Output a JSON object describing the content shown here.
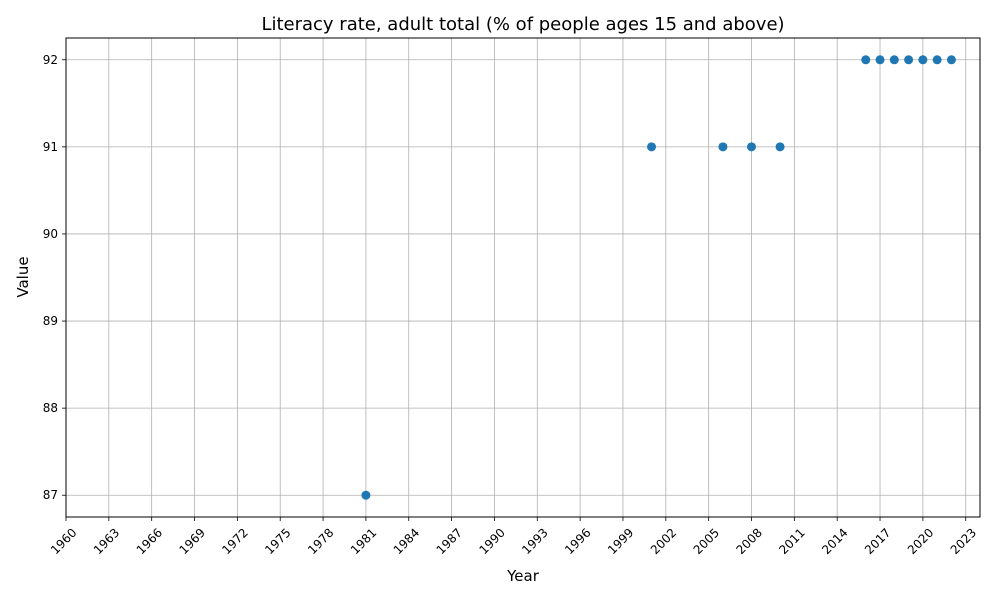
{
  "chart_data": {
    "type": "scatter",
    "title": "Literacy rate, adult total (% of people ages 15 and above)",
    "xlabel": "Year",
    "ylabel": "Value",
    "xlim": [
      1960,
      2024
    ],
    "ylim": [
      86.75,
      92.25
    ],
    "grid": true,
    "marker_color": "#1f77b4",
    "x_ticks": [
      1960,
      1963,
      1966,
      1969,
      1972,
      1975,
      1978,
      1981,
      1984,
      1987,
      1990,
      1993,
      1996,
      1999,
      2002,
      2005,
      2008,
      2011,
      2014,
      2017,
      2020,
      2023
    ],
    "y_ticks": [
      87,
      88,
      89,
      90,
      91,
      92
    ],
    "points": [
      {
        "x": 1981,
        "y": 87
      },
      {
        "x": 2001,
        "y": 91
      },
      {
        "x": 2006,
        "y": 91
      },
      {
        "x": 2008,
        "y": 91
      },
      {
        "x": 2010,
        "y": 91
      },
      {
        "x": 2016,
        "y": 92
      },
      {
        "x": 2017,
        "y": 92
      },
      {
        "x": 2018,
        "y": 92
      },
      {
        "x": 2019,
        "y": 92
      },
      {
        "x": 2020,
        "y": 92
      },
      {
        "x": 2021,
        "y": 92
      },
      {
        "x": 2022,
        "y": 92
      }
    ]
  }
}
